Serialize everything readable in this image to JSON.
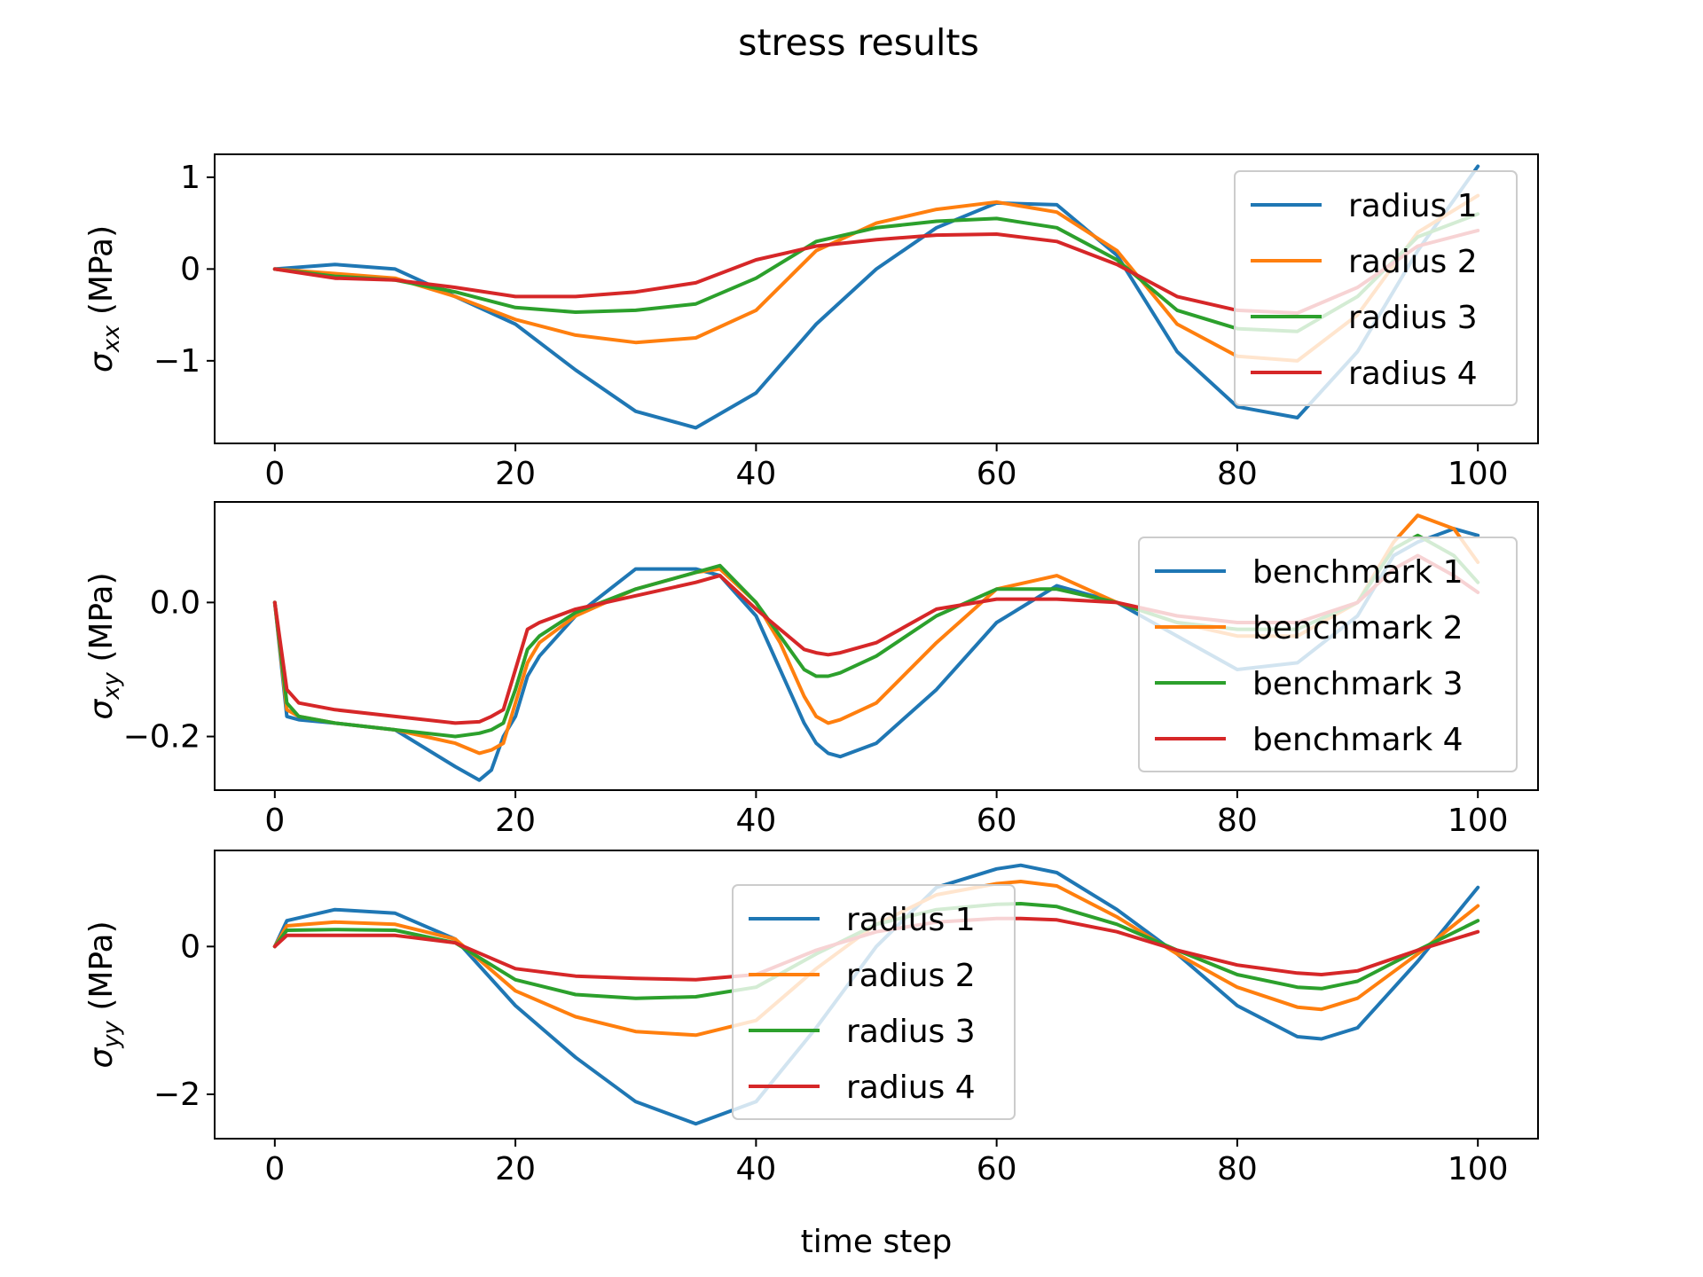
{
  "figure": {
    "title": "stress results",
    "xlabel": "time step"
  },
  "colors": {
    "c1": "#1f77b4",
    "c2": "#ff7f0e",
    "c3": "#2ca02c",
    "c4": "#d62728"
  },
  "chart_data": [
    {
      "type": "line",
      "title": "stress results",
      "ylabel": "σ_xx (MPa)",
      "xlabel": "",
      "xlim": [
        -5,
        105
      ],
      "ylim": [
        -1.9,
        1.25
      ],
      "xticks": [
        0,
        20,
        40,
        60,
        80,
        100
      ],
      "yticks": [
        1,
        0,
        -1
      ],
      "ytick_labels": [
        "1",
        "0",
        "−1"
      ],
      "grid": false,
      "legend_position": "upper right",
      "x": [
        0,
        5,
        10,
        15,
        20,
        25,
        30,
        35,
        40,
        45,
        50,
        55,
        60,
        65,
        70,
        75,
        80,
        85,
        90,
        95,
        100
      ],
      "series": [
        {
          "name": "radius 1",
          "color": "#1f77b4",
          "values": [
            0.0,
            0.05,
            0.0,
            -0.3,
            -0.6,
            -1.1,
            -1.55,
            -1.73,
            -1.35,
            -0.6,
            0.0,
            0.45,
            0.72,
            0.7,
            0.15,
            -0.9,
            -1.5,
            -1.62,
            -0.9,
            0.2,
            1.12
          ]
        },
        {
          "name": "radius 2",
          "color": "#ff7f0e",
          "values": [
            0.0,
            -0.05,
            -0.1,
            -0.3,
            -0.55,
            -0.72,
            -0.8,
            -0.75,
            -0.45,
            0.2,
            0.5,
            0.65,
            0.73,
            0.62,
            0.2,
            -0.6,
            -0.95,
            -1.0,
            -0.5,
            0.4,
            0.8
          ]
        },
        {
          "name": "radius 3",
          "color": "#2ca02c",
          "values": [
            0.0,
            -0.08,
            -0.12,
            -0.25,
            -0.42,
            -0.47,
            -0.45,
            -0.38,
            -0.1,
            0.3,
            0.45,
            0.52,
            0.55,
            0.45,
            0.1,
            -0.45,
            -0.65,
            -0.68,
            -0.3,
            0.35,
            0.6
          ]
        },
        {
          "name": "radius 4",
          "color": "#d62728",
          "values": [
            0.0,
            -0.1,
            -0.12,
            -0.2,
            -0.3,
            -0.3,
            -0.25,
            -0.15,
            0.1,
            0.25,
            0.32,
            0.37,
            0.38,
            0.3,
            0.05,
            -0.3,
            -0.45,
            -0.48,
            -0.2,
            0.25,
            0.42
          ]
        }
      ]
    },
    {
      "type": "line",
      "ylabel": "σ_xy (MPa)",
      "xlabel": "",
      "xlim": [
        -5,
        105
      ],
      "ylim": [
        -0.28,
        0.15
      ],
      "xticks": [
        0,
        20,
        40,
        60,
        80,
        100
      ],
      "yticks": [
        0.0,
        -0.2
      ],
      "ytick_labels": [
        "0.0",
        "−0.2"
      ],
      "grid": false,
      "legend_position": "right",
      "x": [
        0,
        1,
        2,
        5,
        10,
        15,
        17,
        18,
        19,
        20,
        21,
        22,
        25,
        30,
        35,
        37,
        40,
        42,
        44,
        45,
        46,
        47,
        50,
        55,
        60,
        65,
        70,
        75,
        80,
        85,
        90,
        93,
        95,
        98,
        100
      ],
      "series": [
        {
          "name": "benchmark 1",
          "color": "#1f77b4",
          "values": [
            0.0,
            -0.17,
            -0.175,
            -0.18,
            -0.19,
            -0.245,
            -0.265,
            -0.25,
            -0.2,
            -0.17,
            -0.11,
            -0.08,
            -0.02,
            0.05,
            0.05,
            0.04,
            -0.02,
            -0.1,
            -0.18,
            -0.21,
            -0.225,
            -0.23,
            -0.21,
            -0.13,
            -0.03,
            0.025,
            0.0,
            -0.05,
            -0.1,
            -0.09,
            -0.02,
            0.07,
            0.09,
            0.11,
            0.1
          ]
        },
        {
          "name": "benchmark 2",
          "color": "#ff7f0e",
          "values": [
            0.0,
            -0.16,
            -0.17,
            -0.18,
            -0.19,
            -0.21,
            -0.225,
            -0.22,
            -0.21,
            -0.15,
            -0.09,
            -0.06,
            -0.02,
            0.02,
            0.045,
            0.05,
            0.0,
            -0.06,
            -0.14,
            -0.17,
            -0.18,
            -0.175,
            -0.15,
            -0.06,
            0.02,
            0.04,
            0.0,
            -0.03,
            -0.05,
            -0.05,
            0.0,
            0.09,
            0.13,
            0.11,
            0.06
          ]
        },
        {
          "name": "benchmark 3",
          "color": "#2ca02c",
          "values": [
            0.0,
            -0.15,
            -0.17,
            -0.18,
            -0.19,
            -0.2,
            -0.195,
            -0.19,
            -0.18,
            -0.13,
            -0.07,
            -0.05,
            -0.015,
            0.02,
            0.045,
            0.055,
            0.0,
            -0.05,
            -0.1,
            -0.11,
            -0.11,
            -0.105,
            -0.08,
            -0.02,
            0.02,
            0.02,
            0.0,
            -0.03,
            -0.04,
            -0.04,
            0.0,
            0.08,
            0.1,
            0.07,
            0.03
          ]
        },
        {
          "name": "benchmark 4",
          "color": "#d62728",
          "values": [
            0.0,
            -0.13,
            -0.15,
            -0.16,
            -0.17,
            -0.18,
            -0.178,
            -0.17,
            -0.16,
            -0.1,
            -0.04,
            -0.03,
            -0.01,
            0.01,
            0.03,
            0.04,
            -0.01,
            -0.04,
            -0.07,
            -0.075,
            -0.078,
            -0.075,
            -0.06,
            -0.01,
            0.005,
            0.005,
            0.0,
            -0.02,
            -0.03,
            -0.03,
            0.0,
            0.05,
            0.07,
            0.04,
            0.015
          ]
        }
      ]
    },
    {
      "type": "line",
      "ylabel": "σ_yy (MPa)",
      "xlabel": "time step",
      "xlim": [
        -5,
        105
      ],
      "ylim": [
        -2.6,
        1.3
      ],
      "xticks": [
        0,
        20,
        40,
        60,
        80,
        100
      ],
      "yticks": [
        0,
        -2
      ],
      "ytick_labels": [
        "0",
        "−2"
      ],
      "grid": false,
      "legend_position": "center",
      "x": [
        0,
        1,
        5,
        10,
        15,
        20,
        25,
        30,
        35,
        40,
        45,
        50,
        55,
        60,
        62,
        65,
        70,
        75,
        80,
        85,
        87,
        90,
        95,
        100
      ],
      "series": [
        {
          "name": "radius 1",
          "color": "#1f77b4",
          "values": [
            0.0,
            0.35,
            0.5,
            0.45,
            0.1,
            -0.8,
            -1.5,
            -2.1,
            -2.4,
            -2.1,
            -1.1,
            0.0,
            0.8,
            1.05,
            1.1,
            1.0,
            0.5,
            -0.1,
            -0.8,
            -1.22,
            -1.25,
            -1.1,
            -0.2,
            0.8
          ]
        },
        {
          "name": "radius 2",
          "color": "#ff7f0e",
          "values": [
            0.0,
            0.28,
            0.33,
            0.3,
            0.1,
            -0.6,
            -0.95,
            -1.15,
            -1.2,
            -1.0,
            -0.3,
            0.3,
            0.7,
            0.85,
            0.88,
            0.82,
            0.4,
            -0.1,
            -0.55,
            -0.82,
            -0.85,
            -0.7,
            -0.1,
            0.55
          ]
        },
        {
          "name": "radius 3",
          "color": "#2ca02c",
          "values": [
            0.0,
            0.22,
            0.23,
            0.22,
            0.05,
            -0.45,
            -0.65,
            -0.7,
            -0.68,
            -0.55,
            -0.1,
            0.3,
            0.5,
            0.57,
            0.58,
            0.54,
            0.3,
            -0.05,
            -0.38,
            -0.55,
            -0.57,
            -0.47,
            -0.05,
            0.35
          ]
        },
        {
          "name": "radius 4",
          "color": "#d62728",
          "values": [
            0.0,
            0.15,
            0.15,
            0.15,
            0.05,
            -0.3,
            -0.4,
            -0.43,
            -0.45,
            -0.38,
            -0.05,
            0.2,
            0.33,
            0.38,
            0.38,
            0.36,
            0.2,
            -0.05,
            -0.25,
            -0.36,
            -0.38,
            -0.33,
            -0.05,
            0.2
          ]
        }
      ]
    }
  ]
}
